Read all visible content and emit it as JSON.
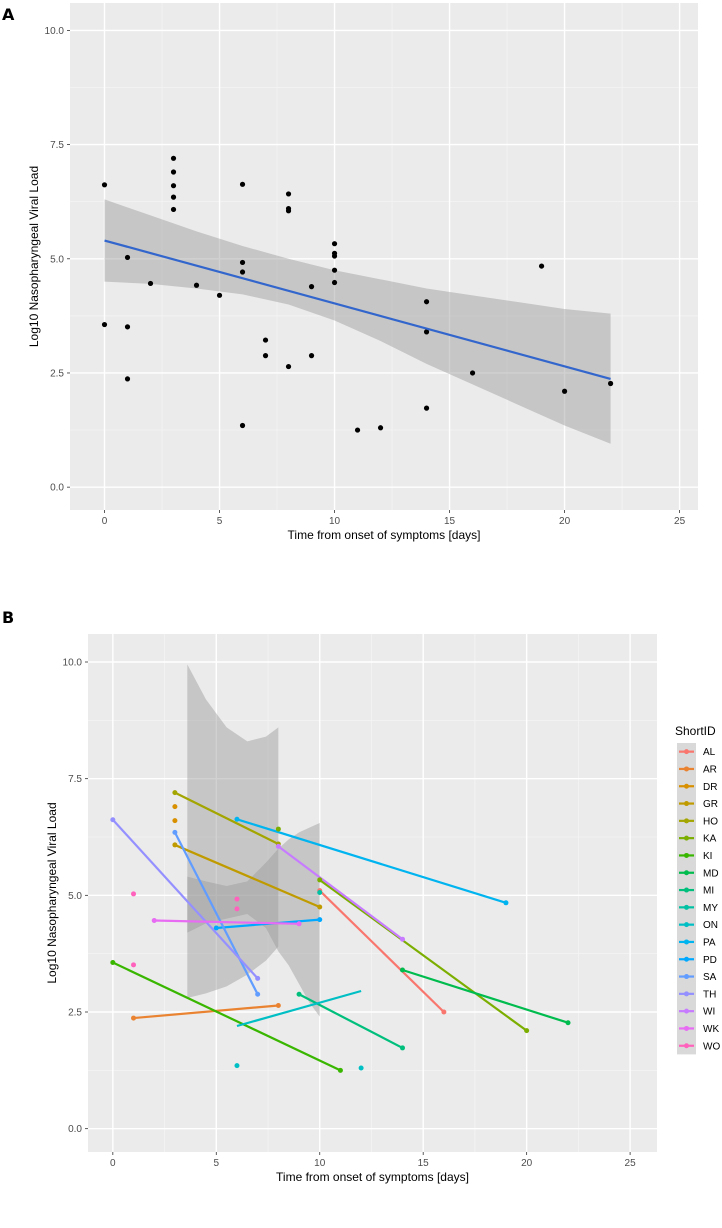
{
  "chart_data": [
    {
      "panel": "A",
      "type": "scatter",
      "xlabel": "Time from onset of symptoms [days]",
      "ylabel": "Log10 Nasopharyngeal Viral Load",
      "xlim": [
        -1.5,
        25.8
      ],
      "ylim": [
        -0.5,
        10.6
      ],
      "xticks": [
        0,
        5,
        10,
        15,
        20,
        25
      ],
      "yticks": [
        0.0,
        2.5,
        5.0,
        7.5,
        10.0
      ],
      "ytick_labels": [
        "0.0",
        "2.5",
        "5.0",
        "7.5",
        "10.0"
      ],
      "grid": true,
      "points": [
        [
          0,
          6.62
        ],
        [
          0,
          3.56
        ],
        [
          1,
          5.03
        ],
        [
          1,
          3.51
        ],
        [
          1,
          2.37
        ],
        [
          2,
          4.46
        ],
        [
          3,
          7.2
        ],
        [
          3,
          6.9
        ],
        [
          3,
          6.6
        ],
        [
          3,
          6.35
        ],
        [
          3,
          6.08
        ],
        [
          4,
          4.42
        ],
        [
          5,
          4.2
        ],
        [
          6,
          6.63
        ],
        [
          6,
          4.92
        ],
        [
          6,
          4.71
        ],
        [
          6,
          1.35
        ],
        [
          7,
          3.22
        ],
        [
          7,
          2.88
        ],
        [
          8,
          6.42
        ],
        [
          8,
          6.1
        ],
        [
          8,
          6.05
        ],
        [
          8,
          2.64
        ],
        [
          9,
          4.39
        ],
        [
          9,
          2.88
        ],
        [
          10,
          5.33
        ],
        [
          10,
          5.12
        ],
        [
          10,
          5.06
        ],
        [
          10,
          4.75
        ],
        [
          10,
          4.48
        ],
        [
          11,
          1.25
        ],
        [
          12,
          1.3
        ],
        [
          14,
          4.06
        ],
        [
          14,
          3.4
        ],
        [
          14,
          1.73
        ],
        [
          16,
          2.5
        ],
        [
          19,
          4.84
        ],
        [
          20,
          2.1
        ],
        [
          22,
          2.27
        ]
      ],
      "fit_line": {
        "x": [
          0,
          22
        ],
        "y": [
          5.4,
          2.37
        ],
        "color": "#3366cc"
      },
      "confidence_band": {
        "x": [
          0,
          2,
          4,
          6,
          8,
          10,
          12,
          14,
          16,
          18,
          20,
          22
        ],
        "lower": [
          4.5,
          4.45,
          4.35,
          4.22,
          4.0,
          3.65,
          3.2,
          2.7,
          2.25,
          1.8,
          1.35,
          0.95
        ],
        "upper": [
          6.3,
          5.95,
          5.6,
          5.28,
          5.0,
          4.75,
          4.55,
          4.35,
          4.2,
          4.05,
          3.9,
          3.8
        ]
      }
    },
    {
      "panel": "B",
      "type": "line",
      "xlabel": "Time from onset of symptoms [days]",
      "ylabel": "Log10 Nasopharyngeal Viral Load",
      "xlim": [
        -1.2,
        26.3
      ],
      "ylim": [
        -0.5,
        10.6
      ],
      "xticks": [
        0,
        5,
        10,
        15,
        20,
        25
      ],
      "yticks": [
        0.0,
        2.5,
        5.0,
        7.5,
        10.0
      ],
      "ytick_labels": [
        "0.0",
        "2.5",
        "5.0",
        "7.5",
        "10.0"
      ],
      "grid": true,
      "legend": {
        "title": "ShortID",
        "position": "right"
      },
      "series": [
        {
          "name": "AL",
          "color": "#f8766d",
          "points": [
            [
              10,
              5.1
            ],
            [
              16,
              2.5
            ]
          ],
          "line": [
            [
              10,
              5.1
            ],
            [
              16,
              2.5
            ]
          ]
        },
        {
          "name": "AR",
          "color": "#ea8331",
          "points": [
            [
              1,
              2.37
            ],
            [
              8,
              2.64
            ]
          ],
          "line": [
            [
              1,
              2.37
            ],
            [
              8,
              2.64
            ]
          ]
        },
        {
          "name": "DR",
          "color": "#d89000",
          "points": [
            [
              3,
              6.9
            ],
            [
              3,
              6.6
            ]
          ],
          "line": null
        },
        {
          "name": "GR",
          "color": "#c09b00",
          "points": [
            [
              3,
              6.08
            ],
            [
              10,
              4.75
            ]
          ],
          "line": [
            [
              3,
              6.08
            ],
            [
              10,
              4.75
            ]
          ]
        },
        {
          "name": "HO",
          "color": "#a3a500",
          "points": [
            [
              3,
              7.2
            ],
            [
              8,
              6.1
            ]
          ],
          "line": [
            [
              3,
              7.2
            ],
            [
              8,
              6.1
            ]
          ]
        },
        {
          "name": "KA",
          "color": "#7cae00",
          "points": [
            [
              8,
              6.42
            ],
            [
              10,
              5.33
            ],
            [
              20,
              2.1
            ]
          ],
          "line": [
            [
              10,
              5.33
            ],
            [
              20,
              2.1
            ]
          ]
        },
        {
          "name": "KI",
          "color": "#39b600",
          "points": [
            [
              0,
              3.56
            ],
            [
              11,
              1.25
            ]
          ],
          "line": [
            [
              0,
              3.56
            ],
            [
              11,
              1.25
            ]
          ]
        },
        {
          "name": "MD",
          "color": "#00bb4e",
          "points": [
            [
              14,
              3.4
            ],
            [
              22,
              2.27
            ]
          ],
          "line": [
            [
              14,
              3.4
            ],
            [
              22,
              2.27
            ]
          ]
        },
        {
          "name": "MI",
          "color": "#00bf7d",
          "points": [
            [
              9,
              2.88
            ],
            [
              14,
              1.73
            ]
          ],
          "line": [
            [
              9,
              2.88
            ],
            [
              14,
              1.73
            ]
          ]
        },
        {
          "name": "MY",
          "color": "#00c1a3",
          "points": [
            [
              10,
              5.06
            ]
          ],
          "line": null
        },
        {
          "name": "ON",
          "color": "#00bfc4",
          "points": [
            [
              6,
              1.35
            ],
            [
              12,
              1.3
            ]
          ],
          "line": [
            [
              6,
              2.2
            ],
            [
              12,
              2.95
            ]
          ]
        },
        {
          "name": "PA",
          "color": "#00b4f0",
          "points": [
            [
              6,
              6.63
            ],
            [
              19,
              4.84
            ]
          ],
          "line": [
            [
              6,
              6.63
            ],
            [
              19,
              4.84
            ]
          ]
        },
        {
          "name": "PD",
          "color": "#00a9ff",
          "points": [
            [
              5,
              4.3
            ],
            [
              10,
              4.48
            ]
          ],
          "line": [
            [
              5,
              4.3
            ],
            [
              10,
              4.48
            ]
          ]
        },
        {
          "name": "SA",
          "color": "#619cff",
          "points": [
            [
              3,
              6.35
            ],
            [
              7,
              2.88
            ]
          ],
          "line": [
            [
              3,
              6.35
            ],
            [
              7,
              2.88
            ]
          ]
        },
        {
          "name": "TH",
          "color": "#9590ff",
          "points": [
            [
              0,
              6.62
            ],
            [
              7,
              3.22
            ]
          ],
          "line": [
            [
              0,
              6.62
            ],
            [
              7,
              3.22
            ]
          ]
        },
        {
          "name": "WI",
          "color": "#c77cff",
          "points": [
            [
              8,
              6.05
            ],
            [
              14,
              4.06
            ]
          ],
          "line": [
            [
              8,
              6.05
            ],
            [
              14,
              4.06
            ]
          ]
        },
        {
          "name": "WK",
          "color": "#e76bf3",
          "points": [
            [
              2,
              4.46
            ],
            [
              9,
              4.39
            ]
          ],
          "line": [
            [
              2,
              4.46
            ],
            [
              9,
              4.39
            ]
          ]
        },
        {
          "name": "WO",
          "color": "#ff62bc",
          "points": [
            [
              1,
              5.03
            ],
            [
              1,
              3.51
            ],
            [
              6,
              4.92
            ],
            [
              6,
              4.71
            ]
          ],
          "line": null
        }
      ],
      "confidence_bands": [
        {
          "x": [
            3.6,
            4.5,
            5.5,
            6.5,
            7.4,
            8.0
          ],
          "lower": [
            2.8,
            2.9,
            3.05,
            3.3,
            3.6,
            3.9
          ],
          "upper": [
            9.95,
            9.2,
            8.6,
            8.3,
            8.4,
            8.6
          ]
        },
        {
          "x": [
            3.6,
            4.5,
            5.5,
            6.5,
            7.4,
            8.0
          ],
          "lower": [
            4.2,
            4.4,
            4.5,
            4.6,
            4.3,
            3.8
          ],
          "upper": [
            5.4,
            5.3,
            5.2,
            5.3,
            5.7,
            6.0
          ]
        },
        {
          "x": [
            8.0,
            8.5,
            9.0,
            9.5,
            10.0
          ],
          "lower": [
            3.8,
            3.5,
            3.1,
            2.7,
            2.4
          ],
          "upper": [
            6.0,
            6.2,
            6.35,
            6.45,
            6.55
          ]
        }
      ]
    }
  ],
  "panel_labels": {
    "a": "A",
    "b": "B"
  }
}
